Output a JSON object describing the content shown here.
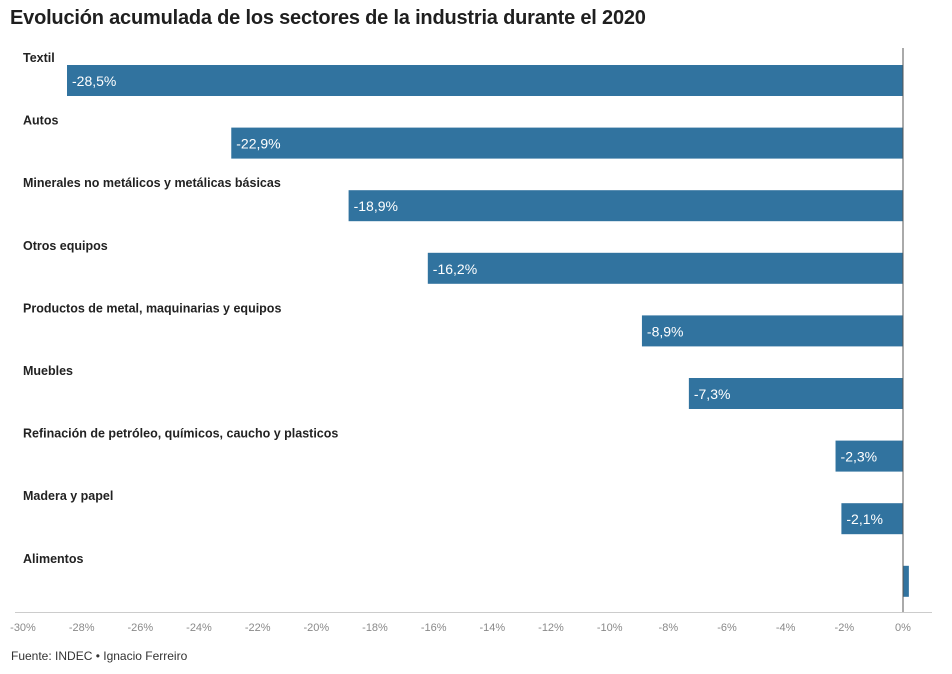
{
  "title": "Evolución acumulada de los sectores de la industria durante el 2020",
  "source": "Fuente: INDEC • Ignacio Ferreiro",
  "colors": {
    "bar": "#31739f",
    "zero_line": "#555555",
    "axis_line": "#cccccc",
    "tick_text": "#8a8a8a"
  },
  "chart_data": {
    "type": "bar",
    "orientation": "horizontal",
    "title": "Evolución acumulada de los sectores de la industria durante el 2020",
    "categories": [
      "Textil",
      "Autos",
      "Minerales no metálicos y metálicas básicas",
      "Otros equipos",
      "Productos de metal, maquinarias y equipos",
      "Muebles",
      "Refinación de petróleo, químicos, caucho y plasticos",
      "Madera y papel",
      "Alimentos"
    ],
    "values": [
      -28.5,
      -22.9,
      -18.9,
      -16.2,
      -8.9,
      -7.3,
      -2.3,
      -2.1,
      0.2
    ],
    "value_labels": [
      "-28,5%",
      "-22,9%",
      "-18,9%",
      "-16,2%",
      "-8,9%",
      "-7,3%",
      "-2,3%",
      "-2,1%",
      ""
    ],
    "x_ticks": [
      -30,
      -28,
      -26,
      -24,
      -22,
      -20,
      -18,
      -16,
      -14,
      -12,
      -10,
      -8,
      -6,
      -4,
      -2,
      0
    ],
    "x_tick_labels": [
      "-30%",
      "-28%",
      "-26%",
      "-24%",
      "-22%",
      "-20%",
      "-18%",
      "-16%",
      "-14%",
      "-12%",
      "-10%",
      "-8%",
      "-6%",
      "-4%",
      "-2%",
      "0%"
    ],
    "xlim": [
      -30,
      1
    ],
    "grid": false
  }
}
